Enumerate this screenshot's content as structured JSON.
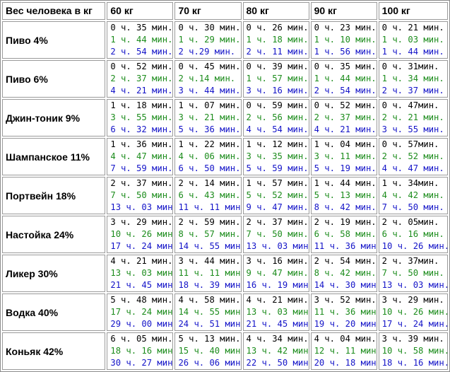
{
  "header": {
    "corner": "Вес человека в кг",
    "weights": [
      "60 кг",
      "70 кг",
      "80 кг",
      "90 кг",
      "100 кг"
    ]
  },
  "line_colors": [
    "#000000",
    "#1c8c1c",
    "#1414c8"
  ],
  "rows": [
    {
      "drink": "Пиво 4%",
      "cells": [
        [
          "0 ч. 35 мин.",
          "1 ч. 44 мин.",
          "2 ч. 54 мин."
        ],
        [
          "0 ч. 30 мин.",
          "1 ч. 29 мин.",
          "2 ч.29 мин."
        ],
        [
          "0 ч. 26 мин.",
          "1 ч. 18 мин.",
          "2 ч. 11 мин."
        ],
        [
          "0 ч. 23 мин.",
          "1 ч. 10 мин.",
          "1 ч. 56 мин."
        ],
        [
          "0 ч. 21 мин.",
          "1 ч. 03 мин.",
          "1 ч. 44 мин."
        ]
      ]
    },
    {
      "drink": "Пиво 6%",
      "cells": [
        [
          "0 ч. 52 мин.",
          "2 ч. 37 мин.",
          "4 ч. 21 мин."
        ],
        [
          "0 ч. 45 мин.",
          "2 ч.14 мин.",
          "3 ч. 44 мин."
        ],
        [
          "0 ч. 39 мин.",
          "1 ч. 57 мин.",
          "3 ч. 16 мин."
        ],
        [
          "0 ч. 35 мин.",
          "1 ч. 44 мин.",
          "2 ч. 54 мин."
        ],
        [
          "0 ч. 31мин.",
          "1 ч. 34 мин.",
          "2 ч. 37 мин."
        ]
      ]
    },
    {
      "drink": "Джин-тоник 9%",
      "cells": [
        [
          "1 ч. 18 мин.",
          "3 ч. 55 мин.",
          "6 ч. 32 мин."
        ],
        [
          "1 ч. 07 мин.",
          "3 ч. 21 мин.",
          "5 ч. 36 мин."
        ],
        [
          "0 ч. 59 мин.",
          "2 ч. 56 мин.",
          "4 ч. 54 мин."
        ],
        [
          "0 ч. 52 мин.",
          "2 ч. 37 мин.",
          "4 ч. 21 мин."
        ],
        [
          "0 ч. 47мин.",
          "2 ч. 21 мин.",
          "3 ч. 55 мин."
        ]
      ]
    },
    {
      "drink": "Шампанское 11%",
      "cells": [
        [
          "1 ч. 36 мин.",
          "4 ч. 47 мин.",
          "7 ч. 59 мин."
        ],
        [
          "1 ч. 22 мин.",
          "4 ч. 06 мин.",
          "6 ч. 50 мин."
        ],
        [
          "1 ч. 12 мин.",
          "3 ч. 35 мин.",
          "5 ч. 59 мин."
        ],
        [
          "1 ч. 04 мин.",
          "3 ч. 11 мин.",
          "5 ч. 19 мин."
        ],
        [
          "0 ч. 57мин.",
          "2 ч. 52 мин.",
          "4 ч. 47 мин."
        ]
      ]
    },
    {
      "drink": "Портвейн 18%",
      "cells": [
        [
          "2 ч. 37 мин.",
          "7 ч. 50 мин.",
          "13 ч. 03 мин."
        ],
        [
          "2 ч. 14 мин.",
          "6 ч. 43 мин.",
          "11 ч. 11 мин."
        ],
        [
          "1 ч. 57 мин.",
          "5 ч. 52 мин.",
          "9 ч. 47 мин."
        ],
        [
          "1 ч. 44 мин.",
          "5 ч. 13 мин.",
          "8 ч. 42 мин."
        ],
        [
          "1 ч. 34мин.",
          "4 ч. 42 мин.",
          "7 ч. 50 мин."
        ]
      ]
    },
    {
      "drink": "Настойка 24%",
      "cells": [
        [
          "3 ч. 29 мин.",
          "10 ч. 26 мин.",
          "17 ч. 24 мин."
        ],
        [
          "2 ч. 59 мин.",
          "8 ч. 57 мин.",
          "14 ч. 55 мин."
        ],
        [
          "2 ч. 37 мин.",
          "7 ч. 50 мин.",
          "13 ч. 03 мин."
        ],
        [
          "2 ч. 19 мин.",
          "6 ч. 58 мин.",
          "11 ч. 36 мин."
        ],
        [
          "2 ч. 05мин.",
          "6 ч. 16 мин.",
          "10 ч. 26 мин."
        ]
      ]
    },
    {
      "drink": "Ликер 30%",
      "cells": [
        [
          "4 ч. 21 мин.",
          "13 ч. 03 мин.",
          "21 ч. 45 мин."
        ],
        [
          "3 ч. 44 мин.",
          "11 ч. 11 мин.",
          "18 ч. 39 мин."
        ],
        [
          "3 ч. 16 мин.",
          "9 ч. 47 мин.",
          "16 ч. 19 мин."
        ],
        [
          "2 ч. 54 мин.",
          "8 ч. 42 мин.",
          "14 ч. 30 мин."
        ],
        [
          "2 ч. 37мин.",
          "7 ч. 50 мин.",
          "13 ч. 03 мин."
        ]
      ]
    },
    {
      "drink": "Водка 40%",
      "cells": [
        [
          "5 ч. 48 мин.",
          "17 ч. 24 мин.",
          "29 ч. 00 мин."
        ],
        [
          "4 ч. 58 мин.",
          "14 ч. 55 мин.",
          "24 ч. 51 мин."
        ],
        [
          "4 ч. 21 мин.",
          "13 ч. 03 мин.",
          "21 ч. 45 мин."
        ],
        [
          "3 ч. 52 мин.",
          "11 ч. 36 мин.",
          "19 ч. 20 мин."
        ],
        [
          "3 ч. 29 мин.",
          "10 ч. 26 мин.",
          "17 ч. 24 мин."
        ]
      ]
    },
    {
      "drink": "Коньяк 42%",
      "cells": [
        [
          "6 ч. 05 мин.",
          "18 ч. 16 мин.",
          "30 ч. 27 мин."
        ],
        [
          "5 ч. 13 мин.",
          "15 ч. 40 мин.",
          "26 ч. 06 мин."
        ],
        [
          "4 ч. 34 мин.",
          "13 ч. 42 мин.",
          "22 ч. 50 мин."
        ],
        [
          "4 ч. 04 мин.",
          "12 ч. 11 мин.",
          "20 ч. 18 мин."
        ],
        [
          "3 ч. 39 мин.",
          "10 ч. 58 мин.",
          "18 ч. 16 мин."
        ]
      ]
    }
  ]
}
